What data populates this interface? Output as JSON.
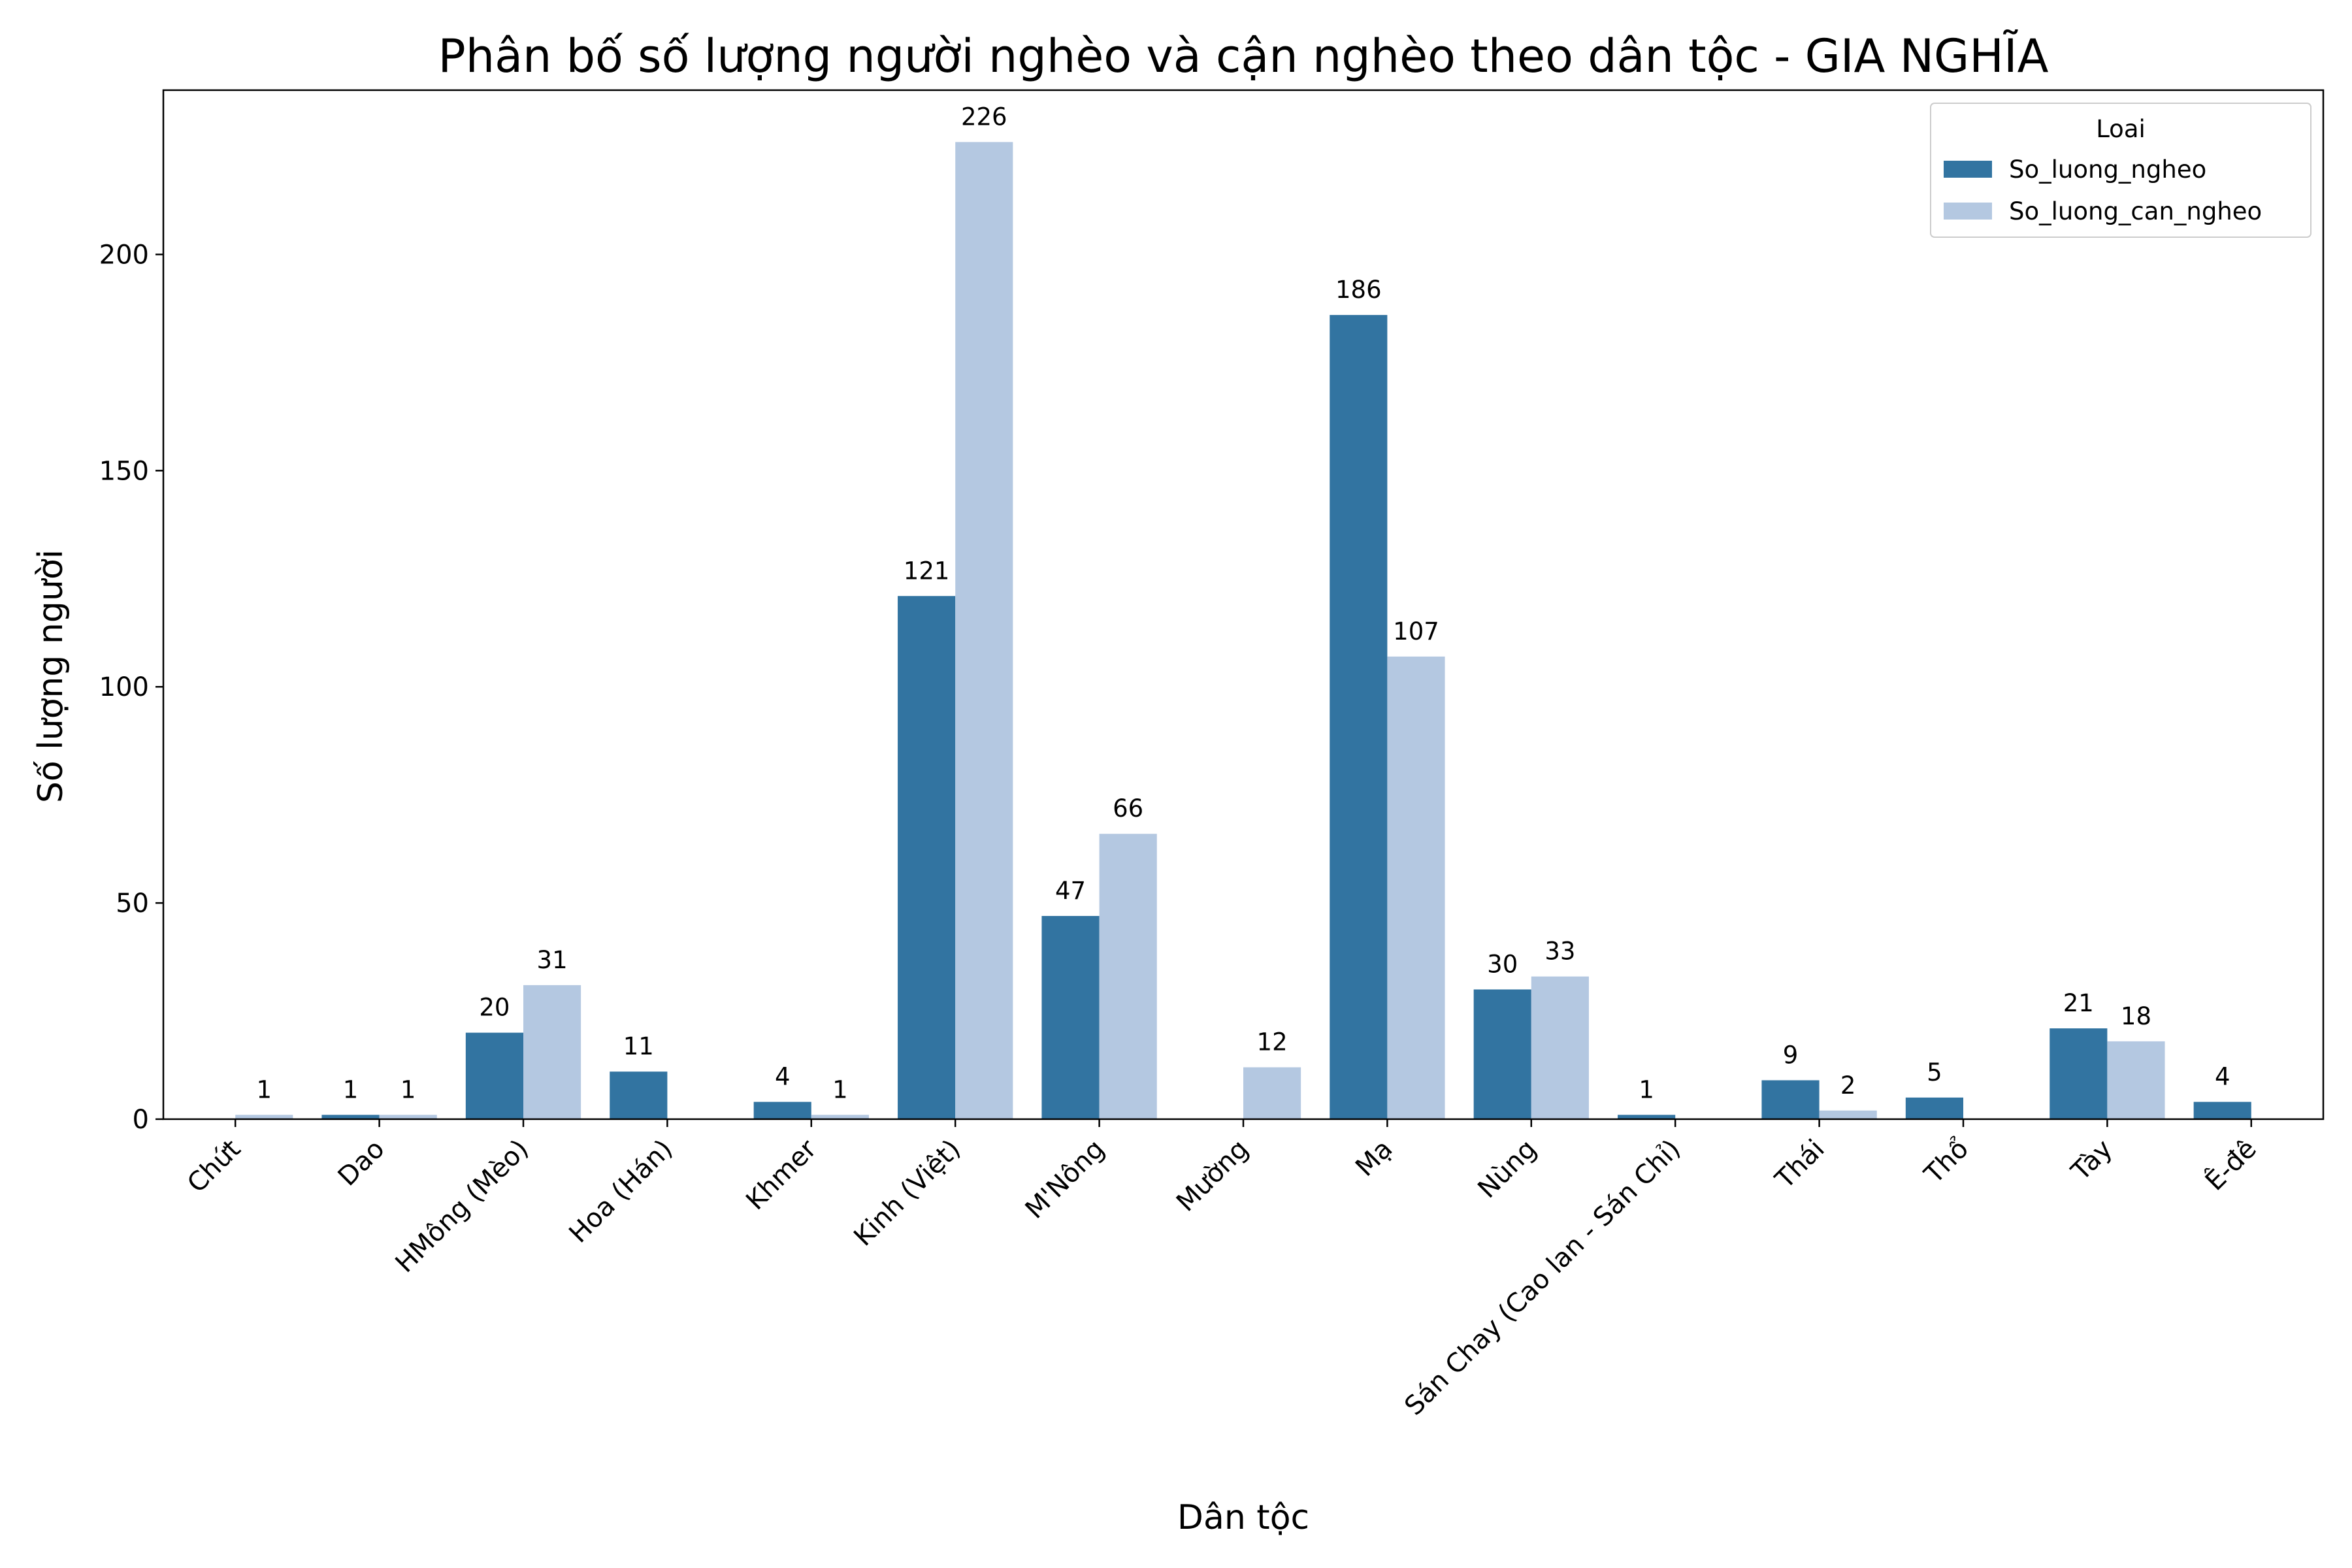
{
  "chart_data": {
    "type": "bar",
    "title": "Phân bố số lượng người nghèo và cận nghèo theo dân tộc - GIA NGHĨA",
    "xlabel": "Dân tộc",
    "ylabel": "Số lượng người",
    "ylim": [
      0,
      238
    ],
    "yticks": [
      0,
      50,
      100,
      150,
      200
    ],
    "grid": false,
    "legend": {
      "title": "Loai",
      "position": "top-right"
    },
    "categories": [
      "Chứt",
      "Dao",
      "HMông (Mèo)",
      "Hoa (Hán)",
      "Khmer",
      "Kinh (Việt)",
      "M'Nông",
      "Mường",
      "Mạ",
      "Nùng",
      "Sán Chay (Cao lan - Sán Chỉ)",
      "Thái",
      "Thổ",
      "Tày",
      "Ê-đê"
    ],
    "series": [
      {
        "name": "So_luong_ngheo",
        "color": "#3274a1",
        "values": [
          0,
          1,
          20,
          11,
          4,
          121,
          47,
          0,
          186,
          30,
          1,
          9,
          5,
          21,
          4
        ]
      },
      {
        "name": "So_luong_can_ngheo",
        "color": "#b4c8e1",
        "values": [
          1,
          1,
          31,
          0,
          1,
          226,
          66,
          12,
          107,
          33,
          0,
          2,
          0,
          18,
          0
        ]
      }
    ]
  }
}
